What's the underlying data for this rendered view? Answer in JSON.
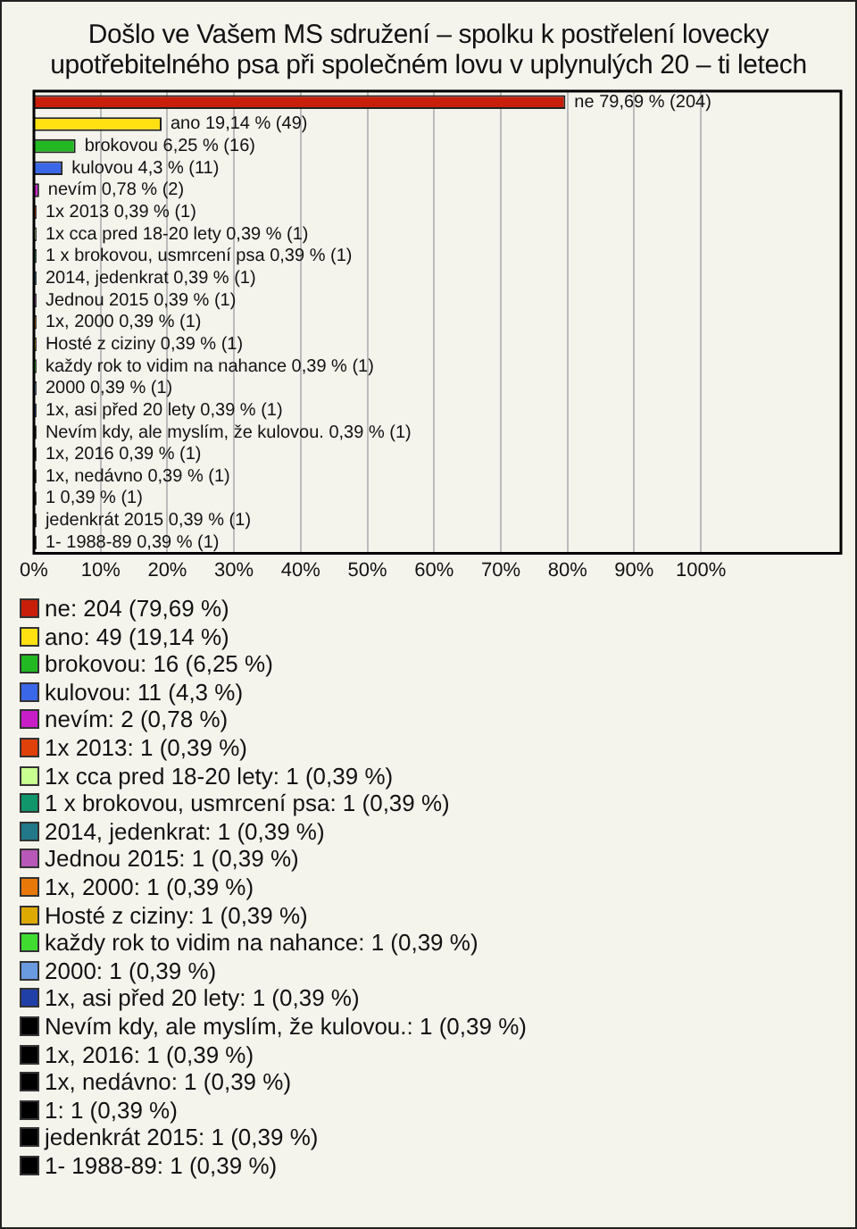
{
  "chart_data": {
    "type": "bar",
    "orientation": "horizontal",
    "title": "Došlo ve Vašem MS sdružení – spolku k postřelení lovecky upotřebitelného psa při společném lovu v uplynulých 20 – ti letech",
    "categories": [
      "ne",
      "ano",
      "brokovou",
      "kulovou",
      "nevím",
      "1x 2013",
      "1x cca pred 18-20 lety",
      "1 x brokovou, usmrcení psa",
      "2014, jedenkrat",
      "Jednou 2015",
      "1x, 2000",
      "Hosté z ciziny",
      "každy rok to vidim na nahance",
      "2000",
      "1x, asi před 20 lety",
      "Nevím kdy, ale myslím, že kulovou.",
      "1x, 2016",
      "1x, nedávno",
      "1",
      "jedenkrát 2015",
      "1- 1988-89"
    ],
    "values": [
      79.69,
      19.14,
      6.25,
      4.3,
      0.78,
      0.39,
      0.39,
      0.39,
      0.39,
      0.39,
      0.39,
      0.39,
      0.39,
      0.39,
      0.39,
      0.39,
      0.39,
      0.39,
      0.39,
      0.39,
      0.39
    ],
    "colors": [
      "#c81e0a",
      "#ffe010",
      "#22b822",
      "#3a66e8",
      "#c81ec8",
      "#e0400a",
      "#c8ff90",
      "#10966a",
      "#207888",
      "#b858b8",
      "#e87808",
      "#dcaa00",
      "#40dc30",
      "#6a9ae0",
      "#2040a8",
      "#000000",
      "#000000",
      "#000000",
      "#000000",
      "#000000",
      "#000000"
    ],
    "value_labels": [
      "79,69 % (204)",
      "19,14 % (49)",
      "6,25 % (16)",
      "4,3 % (11)",
      "0,78 % (2)",
      "0,39 % (1)",
      "0,39 % (1)",
      "0,39 % (1)",
      "0,39 % (1)",
      "0,39 % (1)",
      "0,39 % (1)",
      "0,39 % (1)",
      "0,39 % (1)",
      "0,39 % (1)",
      "0,39 % (1)",
      "0,39 % (1)",
      "0,39 % (1)",
      "0,39 % (1)",
      "0,39 % (1)",
      "0,39 % (1)",
      "0,39 % (1)"
    ],
    "xlim": [
      0,
      121
    ],
    "xticks": [
      {
        "value": 0,
        "label": "0%"
      },
      {
        "value": 10,
        "label": "10%"
      },
      {
        "value": 20,
        "label": "20%"
      },
      {
        "value": 30,
        "label": "30%"
      },
      {
        "value": 40,
        "label": "40%"
      },
      {
        "value": 50,
        "label": "50%"
      },
      {
        "value": 60,
        "label": "60%"
      },
      {
        "value": 70,
        "label": "70%"
      },
      {
        "value": 80,
        "label": "80%"
      },
      {
        "value": 90,
        "label": "90%"
      },
      {
        "value": 100,
        "label": "100%"
      }
    ],
    "grid": "x",
    "tick_labels": "x",
    "annotations": [
      "ne: 204 (79,69 %)",
      "ano: 49 (19,14 %)",
      "brokovou: 16 (6,25 %)",
      "kulovou: 11 (4,3 %)",
      "nevím: 2 (0,78 %)",
      "1x 2013: 1 (0,39 %)",
      "1x cca pred 18-20 lety: 1 (0,39 %)",
      "1 x brokovou, usmrcení psa: 1 (0,39 %)",
      "2014, jedenkrat: 1 (0,39 %)",
      "Jednou 2015: 1 (0,39 %)",
      "1x, 2000: 1 (0,39 %)",
      "Hosté z ciziny: 1 (0,39 %)",
      "každy rok to vidim na nahance: 1 (0,39 %)",
      "2000: 1 (0,39 %)",
      "1x, asi před 20 lety: 1 (0,39 %)",
      "Nevím kdy, ale myslím, že kulovou.: 1 (0,39 %)",
      "1x, 2016: 1 (0,39 %)",
      "1x, nedávno: 1 (0,39 %)",
      "1: 1 (0,39 %)",
      "jedenkrát 2015: 1 (0,39 %)",
      "1- 1988-89: 1 (0,39 %)"
    ]
  }
}
